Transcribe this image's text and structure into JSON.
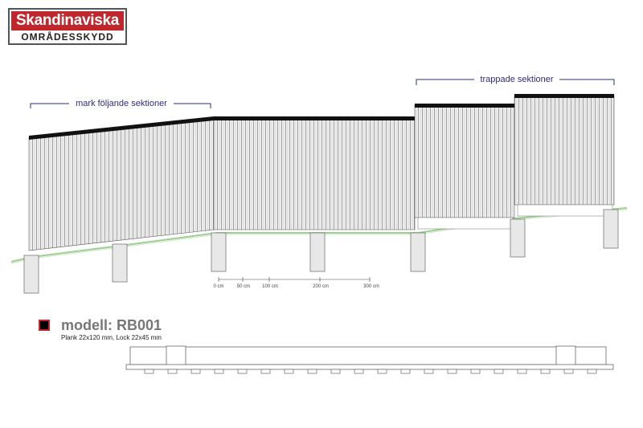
{
  "logo": {
    "line1": "Skandinaviska",
    "line2": "OMRÅDESSKYDD"
  },
  "labels": {
    "sloped": "mark följande sektioner",
    "stepped": "trappade sektioner"
  },
  "scale": [
    "0 cm",
    "50 cm",
    "100 cm",
    "200 cm",
    "300 cm"
  ],
  "model": {
    "title": "modell: RB001",
    "spec": "Plank 22x120 mm, Lock 22x45 mm"
  },
  "colors": {
    "brand_red": "#c0272d",
    "label_blue": "#2b2e7a",
    "ground_green": "#9ccf8f",
    "cap": "#111111"
  }
}
